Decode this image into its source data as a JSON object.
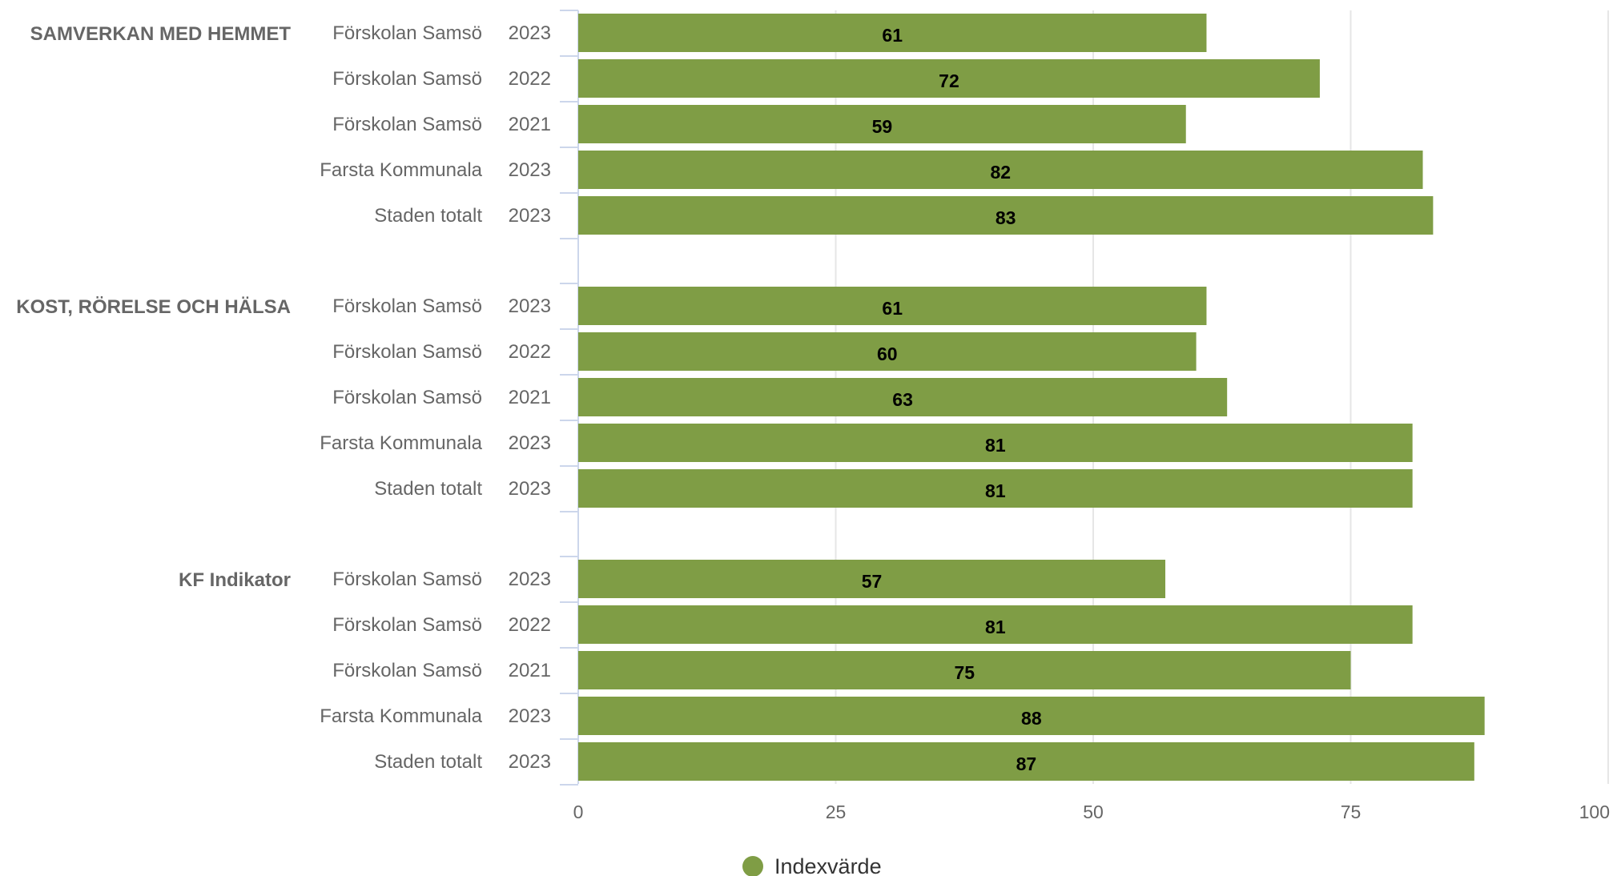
{
  "chart_data": {
    "type": "bar",
    "orientation": "horizontal",
    "xlim": [
      0,
      100
    ],
    "x_ticks": [
      "0",
      "25",
      "50",
      "75",
      "100"
    ],
    "grid": true,
    "legend_position": "bottom-center",
    "colors": {
      "bar": "#7f9d45",
      "grid": "#e6e6e6",
      "axis": "#ccd6eb",
      "text": "#666666",
      "value": "#000000"
    },
    "groups": [
      {
        "category": "SAMVERKAN MED HEMMET",
        "rows": [
          {
            "org": "Förskolan Samsö",
            "year": "2023",
            "value": 61
          },
          {
            "org": "Förskolan Samsö",
            "year": "2022",
            "value": 72
          },
          {
            "org": "Förskolan Samsö",
            "year": "2021",
            "value": 59
          },
          {
            "org": "Farsta Kommunala",
            "year": "2023",
            "value": 82
          },
          {
            "org": "Staden totalt",
            "year": "2023",
            "value": 83
          }
        ]
      },
      {
        "category": "KOST, RÖRELSE OCH HÄLSA",
        "rows": [
          {
            "org": "Förskolan Samsö",
            "year": "2023",
            "value": 61
          },
          {
            "org": "Förskolan Samsö",
            "year": "2022",
            "value": 60
          },
          {
            "org": "Förskolan Samsö",
            "year": "2021",
            "value": 63
          },
          {
            "org": "Farsta Kommunala",
            "year": "2023",
            "value": 81
          },
          {
            "org": "Staden totalt",
            "year": "2023",
            "value": 81
          }
        ]
      },
      {
        "category": "KF Indikator",
        "rows": [
          {
            "org": "Förskolan Samsö",
            "year": "2023",
            "value": 57
          },
          {
            "org": "Förskolan Samsö",
            "year": "2022",
            "value": 81
          },
          {
            "org": "Förskolan Samsö",
            "year": "2021",
            "value": 75
          },
          {
            "org": "Farsta Kommunala",
            "year": "2023",
            "value": 88
          },
          {
            "org": "Staden totalt",
            "year": "2023",
            "value": 87
          }
        ]
      }
    ],
    "series": [
      {
        "name": "Indexvärde"
      }
    ]
  }
}
